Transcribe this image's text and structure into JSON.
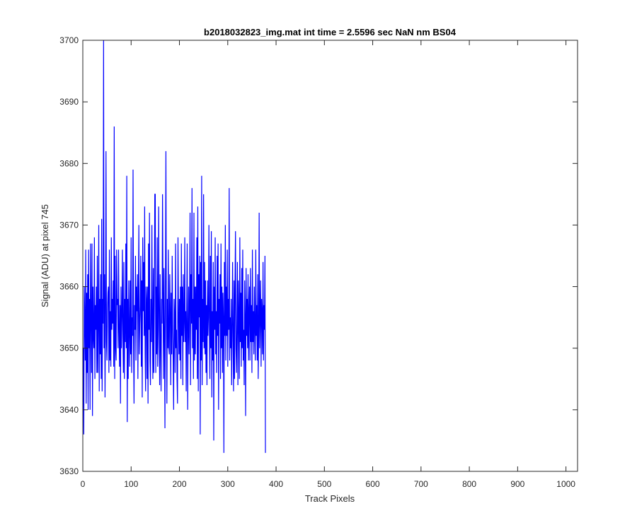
{
  "chart_data": {
    "type": "line",
    "title": "b2018032823_img.mat int time = 2.5596 sec  NaN nm BS04",
    "xlabel": "Track Pixels",
    "ylabel": "Signal (ADU) at pixel 745",
    "xlim": [
      0,
      1024
    ],
    "ylim": [
      3630,
      3700
    ],
    "xticks": [
      0,
      100,
      200,
      300,
      400,
      500,
      600,
      700,
      800,
      900,
      1000
    ],
    "yticks": [
      3630,
      3640,
      3650,
      3660,
      3670,
      3680,
      3690,
      3700
    ],
    "grid": false,
    "legend": "none",
    "series": [
      {
        "color": "#0000ff",
        "x_start": 1,
        "x_step": 1,
        "values": [
          3650,
          3636,
          3660,
          3655,
          3648,
          3666,
          3641,
          3659,
          3646,
          3662,
          3640,
          3666,
          3650,
          3658,
          3640,
          3667,
          3655,
          3646,
          3667,
          3639,
          3660,
          3652,
          3650,
          3668,
          3645,
          3657,
          3653,
          3660,
          3646,
          3665,
          3646,
          3654,
          3670,
          3643,
          3658,
          3649,
          3662,
          3645,
          3671,
          3643,
          3658,
          3654,
          3700,
          3650,
          3662,
          3642,
          3656,
          3682,
          3651,
          3648,
          3656,
          3659,
          3660,
          3646,
          3666,
          3648,
          3656,
          3647,
          3668,
          3653,
          3658,
          3654,
          3661,
          3647,
          3686,
          3645,
          3665,
          3650,
          3648,
          3666,
          3657,
          3658,
          3650,
          3666,
          3653,
          3647,
          3657,
          3641,
          3660,
          3650,
          3655,
          3666,
          3652,
          3646,
          3664,
          3645,
          3658,
          3651,
          3667,
          3650,
          3678,
          3638,
          3658,
          3645,
          3661,
          3653,
          3647,
          3661,
          3649,
          3668,
          3646,
          3655,
          3652,
          3679,
          3651,
          3641,
          3657,
          3653,
          3665,
          3648,
          3660,
          3656,
          3662,
          3645,
          3658,
          3670,
          3649,
          3654,
          3657,
          3665,
          3647,
          3661,
          3642,
          3668,
          3656,
          3664,
          3652,
          3673,
          3649,
          3643,
          3660,
          3658,
          3645,
          3660,
          3641,
          3667,
          3653,
          3672,
          3648,
          3644,
          3658,
          3651,
          3670,
          3654,
          3645,
          3663,
          3646,
          3657,
          3675,
          3675,
          3646,
          3660,
          3649,
          3668,
          3647,
          3653,
          3673,
          3655,
          3644,
          3662,
          3650,
          3643,
          3658,
          3654,
          3675,
          3659,
          3645,
          3663,
          3653,
          3637,
          3660,
          3682,
          3655,
          3641,
          3658,
          3650,
          3666,
          3650,
          3649,
          3662,
          3656,
          3644,
          3659,
          3649,
          3665,
          3653,
          3648,
          3640,
          3658,
          3655,
          3646,
          3667,
          3650,
          3653,
          3645,
          3641,
          3668,
          3656,
          3649,
          3658,
          3648,
          3660,
          3645,
          3667,
          3652,
          3660,
          3644,
          3662,
          3651,
          3654,
          3668,
          3651,
          3656,
          3643,
          3656,
          3667,
          3640,
          3652,
          3660,
          3649,
          3658,
          3672,
          3644,
          3662,
          3654,
          3676,
          3650,
          3658,
          3645,
          3672,
          3648,
          3660,
          3649,
          3660,
          3653,
          3668,
          3645,
          3673,
          3643,
          3662,
          3655,
          3665,
          3636,
          3664,
          3648,
          3678,
          3644,
          3658,
          3651,
          3675,
          3650,
          3664,
          3649,
          3661,
          3646,
          3657,
          3644,
          3661,
          3652,
          3655,
          3670,
          3653,
          3645,
          3665,
          3650,
          3669,
          3642,
          3656,
          3648,
          3664,
          3635,
          3660,
          3653,
          3668,
          3649,
          3656,
          3646,
          3665,
          3652,
          3667,
          3640,
          3658,
          3654,
          3662,
          3645,
          3667,
          3650,
          3660,
          3646,
          3659,
          3655,
          3633,
          3664,
          3652,
          3670,
          3648,
          3660,
          3652,
          3666,
          3647,
          3658,
          3653,
          3676,
          3648,
          3655,
          3650,
          3658,
          3644,
          3653,
          3664,
          3652,
          3643,
          3661,
          3645,
          3660,
          3669,
          3650,
          3646,
          3654,
          3664,
          3644,
          3661,
          3655,
          3645,
          3668,
          3651,
          3659,
          3647,
          3663,
          3650,
          3666,
          3648,
          3653,
          3644,
          3661,
          3655,
          3639,
          3663,
          3652,
          3658,
          3650,
          3662,
          3648,
          3656,
          3660,
          3648,
          3663,
          3651,
          3657,
          3646,
          3666,
          3651,
          3656,
          3649,
          3660,
          3653,
          3648,
          3666,
          3652,
          3657,
          3648,
          3662,
          3645,
          3652,
          3672,
          3650,
          3655,
          3661,
          3647,
          3658,
          3656,
          3649,
          3664,
          3648,
          3657,
          3653,
          3665,
          3633
        ]
      }
    ]
  }
}
